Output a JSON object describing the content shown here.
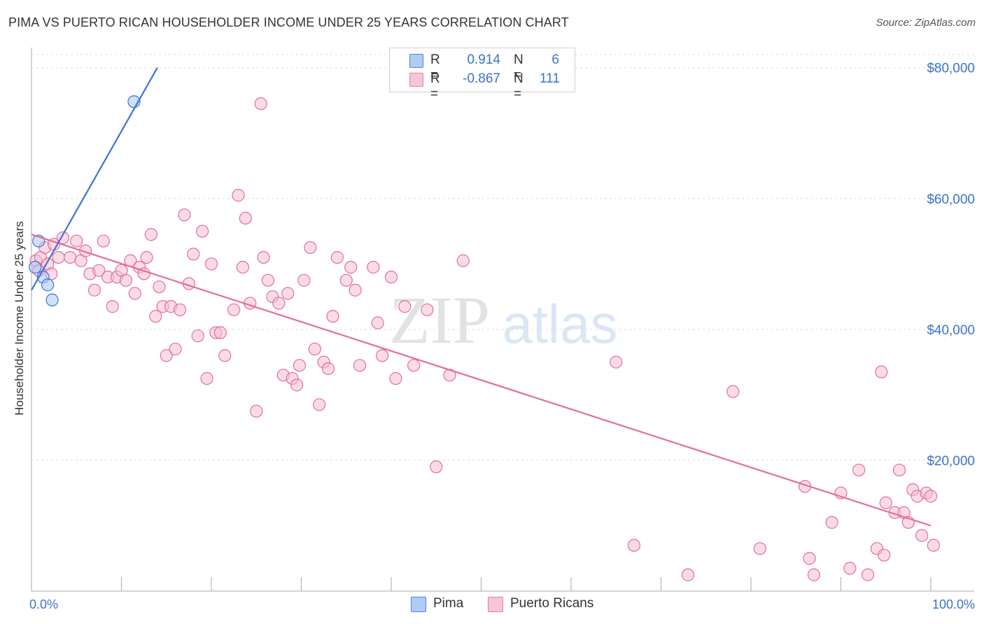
{
  "title": "PIMA VS PUERTO RICAN HOUSEHOLDER INCOME UNDER 25 YEARS CORRELATION CHART",
  "source": "Source: ZipAtlas.com",
  "watermark": {
    "zip": "ZIP",
    "atlas": "atlas"
  },
  "colors": {
    "pima": "#3b73d6",
    "pima_fill": "#a9c7f2",
    "pr": "#e56d99",
    "pr_fill": "#f7bfd2",
    "axis_label": "#3b73c6"
  },
  "legend": {
    "rows": [
      {
        "series": "Pima",
        "r_label": "R =",
        "r_value": "0.914",
        "n_label": "N =",
        "n_value": "6"
      },
      {
        "series": "Puerto Ricans",
        "r_label": "R =",
        "r_value": "-0.867",
        "n_label": "N =",
        "n_value": "111"
      }
    ]
  },
  "bottom_legend": {
    "pima": "Pima",
    "pr": "Puerto Ricans"
  },
  "chart_data": {
    "type": "scatter",
    "title": "PIMA VS PUERTO RICAN HOUSEHOLDER INCOME UNDER 25 YEARS CORRELATION CHART",
    "xlabel": "",
    "ylabel": "Householder Income Under 25 years",
    "xlim": [
      0,
      100
    ],
    "ylim": [
      0,
      82000
    ],
    "x_tick_labels": [
      "0.0%",
      "100.0%"
    ],
    "y_ticks": [
      20000,
      40000,
      60000,
      80000
    ],
    "y_tick_labels": [
      "$20,000",
      "$40,000",
      "$60,000",
      "$80,000"
    ],
    "grid": true,
    "series": [
      {
        "name": "Pima",
        "points": [
          [
            11.4,
            74800
          ],
          [
            0.8,
            53500
          ],
          [
            0.4,
            49500
          ],
          [
            1.3,
            48000
          ],
          [
            1.8,
            46800
          ],
          [
            2.3,
            44500
          ]
        ],
        "trend": {
          "x0": 0.0,
          "y0": 46000,
          "x1": 14.0,
          "y1": 80000
        }
      },
      {
        "name": "Puerto Ricans",
        "points": [
          [
            0.5,
            50500
          ],
          [
            0.8,
            49000
          ],
          [
            1.0,
            51000
          ],
          [
            1.5,
            52500
          ],
          [
            1.8,
            50000
          ],
          [
            2.2,
            48500
          ],
          [
            2.5,
            53000
          ],
          [
            3.0,
            51000
          ],
          [
            3.5,
            54000
          ],
          [
            4.3,
            51000
          ],
          [
            5.0,
            53500
          ],
          [
            5.5,
            50500
          ],
          [
            6.0,
            52000
          ],
          [
            6.5,
            48500
          ],
          [
            7.0,
            46000
          ],
          [
            7.5,
            49000
          ],
          [
            8.0,
            53500
          ],
          [
            8.5,
            48000
          ],
          [
            9.0,
            43500
          ],
          [
            9.5,
            48000
          ],
          [
            10.0,
            49000
          ],
          [
            10.5,
            47500
          ],
          [
            11.0,
            50500
          ],
          [
            11.5,
            45500
          ],
          [
            12.0,
            49500
          ],
          [
            12.5,
            48500
          ],
          [
            12.8,
            51000
          ],
          [
            13.3,
            54500
          ],
          [
            13.8,
            42000
          ],
          [
            14.2,
            46500
          ],
          [
            14.6,
            43500
          ],
          [
            15.0,
            36000
          ],
          [
            15.5,
            43500
          ],
          [
            16.0,
            37000
          ],
          [
            16.5,
            43000
          ],
          [
            17.0,
            57500
          ],
          [
            17.5,
            47000
          ],
          [
            18.0,
            51500
          ],
          [
            18.5,
            39000
          ],
          [
            19.0,
            55000
          ],
          [
            19.5,
            32500
          ],
          [
            20.0,
            50000
          ],
          [
            20.5,
            39500
          ],
          [
            21.0,
            39500
          ],
          [
            21.5,
            36000
          ],
          [
            22.5,
            43000
          ],
          [
            23.0,
            60500
          ],
          [
            23.5,
            49500
          ],
          [
            23.8,
            57000
          ],
          [
            24.3,
            44000
          ],
          [
            25.0,
            27500
          ],
          [
            25.5,
            74500
          ],
          [
            25.8,
            51000
          ],
          [
            26.3,
            47500
          ],
          [
            26.8,
            45000
          ],
          [
            27.5,
            44000
          ],
          [
            28.0,
            33000
          ],
          [
            28.5,
            45500
          ],
          [
            29.0,
            32500
          ],
          [
            29.5,
            31500
          ],
          [
            29.8,
            34500
          ],
          [
            30.3,
            47500
          ],
          [
            31.0,
            52500
          ],
          [
            31.5,
            37000
          ],
          [
            32.0,
            28500
          ],
          [
            32.5,
            35000
          ],
          [
            33.0,
            34000
          ],
          [
            33.5,
            42000
          ],
          [
            34.0,
            51000
          ],
          [
            35.0,
            47500
          ],
          [
            35.5,
            49500
          ],
          [
            36.0,
            46000
          ],
          [
            36.5,
            34500
          ],
          [
            38.0,
            49500
          ],
          [
            38.5,
            41000
          ],
          [
            39.0,
            36000
          ],
          [
            40.0,
            48000
          ],
          [
            40.5,
            32500
          ],
          [
            41.5,
            43500
          ],
          [
            42.5,
            34500
          ],
          [
            44.0,
            43000
          ],
          [
            45.0,
            19000
          ],
          [
            46.5,
            33000
          ],
          [
            48.0,
            50500
          ],
          [
            65.0,
            35000
          ],
          [
            67.0,
            7000
          ],
          [
            73.0,
            2500
          ],
          [
            78.0,
            30500
          ],
          [
            81.0,
            6500
          ],
          [
            86.0,
            16000
          ],
          [
            86.5,
            5000
          ],
          [
            87.0,
            2500
          ],
          [
            89.0,
            10500
          ],
          [
            90.0,
            15000
          ],
          [
            91.0,
            3500
          ],
          [
            92.0,
            18500
          ],
          [
            93.0,
            2500
          ],
          [
            94.0,
            6500
          ],
          [
            94.5,
            33500
          ],
          [
            94.8,
            5500
          ],
          [
            95.0,
            13500
          ],
          [
            96.0,
            12000
          ],
          [
            96.5,
            18500
          ],
          [
            97.0,
            12000
          ],
          [
            97.5,
            10500
          ],
          [
            98.0,
            15500
          ],
          [
            98.5,
            14500
          ],
          [
            99.0,
            8500
          ],
          [
            99.5,
            15000
          ],
          [
            100.0,
            14500
          ],
          [
            100.3,
            7000
          ]
        ],
        "trend": {
          "x0": 0.0,
          "y0": 54500,
          "x1": 100.0,
          "y1": 10000
        }
      }
    ]
  }
}
